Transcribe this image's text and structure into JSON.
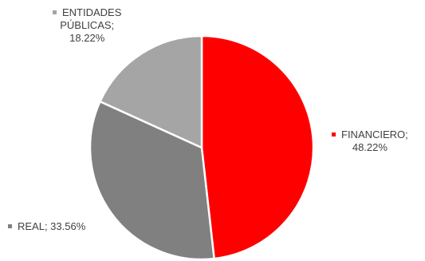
{
  "chart_data": {
    "type": "pie",
    "slices": [
      {
        "label": "FINANCIERO",
        "value": 48.22,
        "display": "48.22%",
        "color": "#FF0000"
      },
      {
        "label": "REAL",
        "value": 33.56,
        "display": "33.56%",
        "color": "#808080"
      },
      {
        "label": "ENTIDADES PÚBLICAS",
        "value": 18.22,
        "display": "18.22%",
        "color": "#A5A5A5"
      }
    ],
    "title": "",
    "legend": "none",
    "data_labels": "category-and-percent"
  },
  "labels": {
    "financiero_name": "FINANCIERO;",
    "financiero_value": "48.22%",
    "entidades_name_line1": "ENTIDADES",
    "entidades_name_line2": "PÚBLICAS;",
    "entidades_value": "18.22%",
    "real_text": "REAL; 33.56%"
  }
}
